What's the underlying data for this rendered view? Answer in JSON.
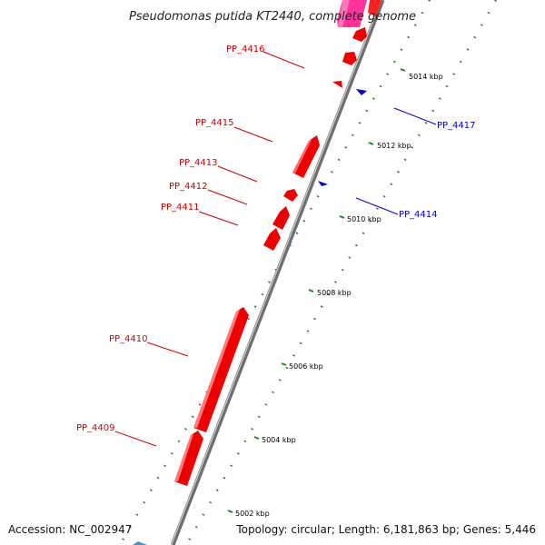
{
  "title": "Pseudomonas putida KT2440, complete genome",
  "footer": {
    "accession": "Accession: NC_002947",
    "summary": "Topology: circular; Length: 6,181,863 bp; Genes: 5,446"
  },
  "colors": {
    "forward_gene": "#ff0000",
    "reverse_gene": "#0000cc",
    "backbone": "#8c8c8c",
    "tick": "#2e7d2e",
    "top_feature": "#ff3399"
  },
  "scale": {
    "ticks_kbp": [
      5002,
      5004,
      5006,
      5008,
      5010,
      5012,
      5014
    ],
    "tick_unit": "kbp"
  },
  "genes": [
    {
      "id": "PP_4417",
      "strand": "reverse"
    },
    {
      "id": "PP_4416",
      "strand": "forward"
    },
    {
      "id": "PP_4415",
      "strand": "forward"
    },
    {
      "id": "PP_4414",
      "strand": "reverse"
    },
    {
      "id": "PP_4413",
      "strand": "forward"
    },
    {
      "id": "PP_4412",
      "strand": "forward"
    },
    {
      "id": "PP_4411",
      "strand": "forward"
    },
    {
      "id": "PP_4410",
      "strand": "forward"
    },
    {
      "id": "PP_4409",
      "strand": "forward"
    }
  ]
}
